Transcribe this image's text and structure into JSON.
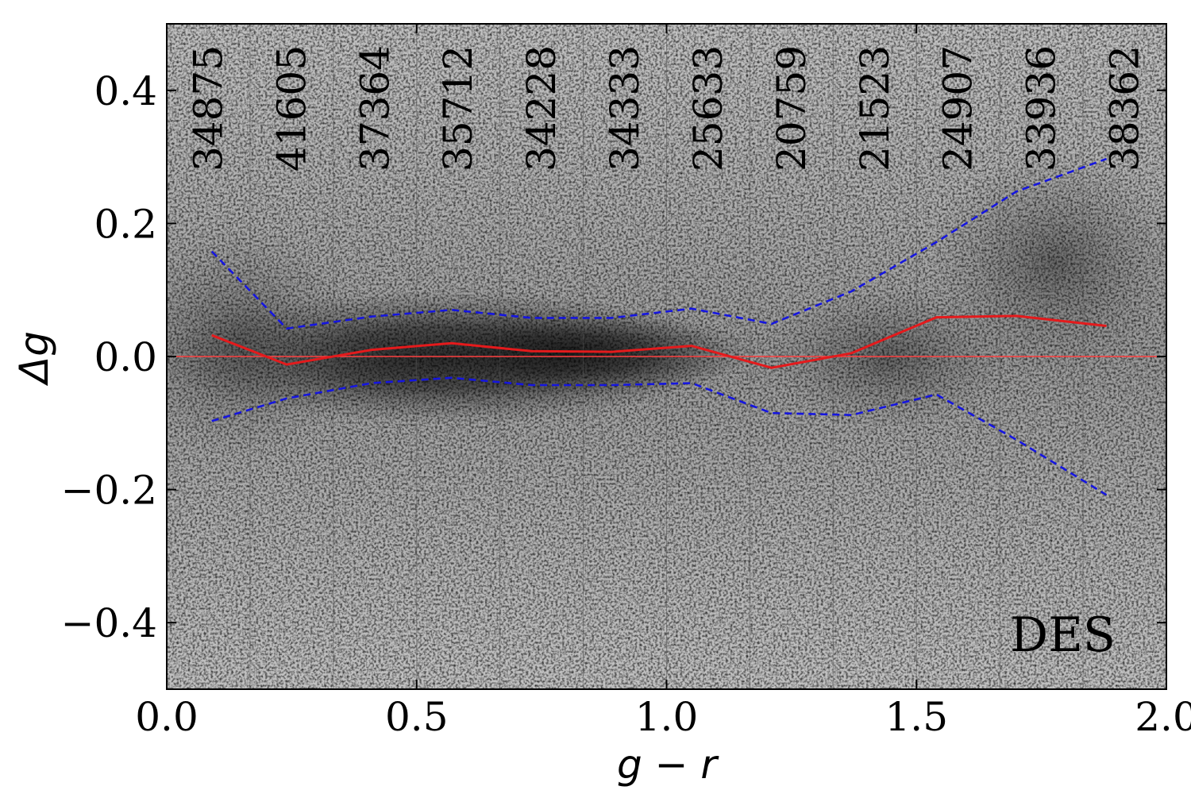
{
  "chart_data": {
    "type": "scatter",
    "xlabel": "g − r",
    "ylabel": "Δg",
    "xlim": [
      0.0,
      2.0
    ],
    "ylim": [
      -0.5,
      0.5
    ],
    "x_ticks": [
      0.0,
      0.5,
      1.0,
      1.5,
      2.0
    ],
    "x_tick_labels": [
      "0.0",
      "0.5",
      "1.0",
      "1.5",
      "2.0"
    ],
    "y_ticks": [
      -0.4,
      -0.2,
      0.0,
      0.2,
      0.4
    ],
    "y_tick_labels": [
      "−0.4",
      "−0.2",
      "0.0",
      "0.2",
      "0.4"
    ],
    "bin_edges": [
      0.0,
      0.1667,
      0.3333,
      0.5,
      0.6667,
      0.8333,
      1.0,
      1.1667,
      1.3333,
      1.5,
      1.6667,
      1.8333,
      2.0
    ],
    "bin_counts": [
      "34875",
      "41605",
      "37364",
      "35712",
      "34228",
      "34333",
      "25633",
      "20759",
      "21523",
      "24907",
      "33936",
      "38362"
    ],
    "annotation": "DES",
    "reference_line_y": 0.0,
    "colors": {
      "median": "#e41a1c",
      "percentile": "#1515e0",
      "reference": "#ff4040",
      "density_dark": "#1a1a1a",
      "density_light": "#ffffff"
    },
    "series": [
      {
        "role": "median",
        "style": "solid",
        "x": [
          0.09,
          0.24,
          0.41,
          0.57,
          0.73,
          0.89,
          1.05,
          1.21,
          1.37,
          1.54,
          1.7,
          1.88
        ],
        "y": [
          0.032,
          -0.012,
          0.01,
          0.02,
          0.008,
          0.007,
          0.016,
          -0.017,
          0.005,
          0.059,
          0.061,
          0.046
        ]
      },
      {
        "role": "upper",
        "style": "dashed",
        "x": [
          0.09,
          0.24,
          0.41,
          0.57,
          0.73,
          0.89,
          1.05,
          1.21,
          1.37,
          1.54,
          1.7,
          1.88
        ],
        "y": [
          0.158,
          0.042,
          0.06,
          0.07,
          0.058,
          0.058,
          0.072,
          0.049,
          0.098,
          0.172,
          0.248,
          0.297
        ]
      },
      {
        "role": "lower",
        "style": "dashed",
        "x": [
          0.09,
          0.24,
          0.41,
          0.57,
          0.73,
          0.89,
          1.05,
          1.21,
          1.37,
          1.54,
          1.7,
          1.88
        ],
        "y": [
          -0.097,
          -0.063,
          -0.04,
          -0.032,
          -0.043,
          -0.043,
          -0.04,
          -0.085,
          -0.088,
          -0.057,
          -0.125,
          -0.208
        ]
      }
    ]
  }
}
